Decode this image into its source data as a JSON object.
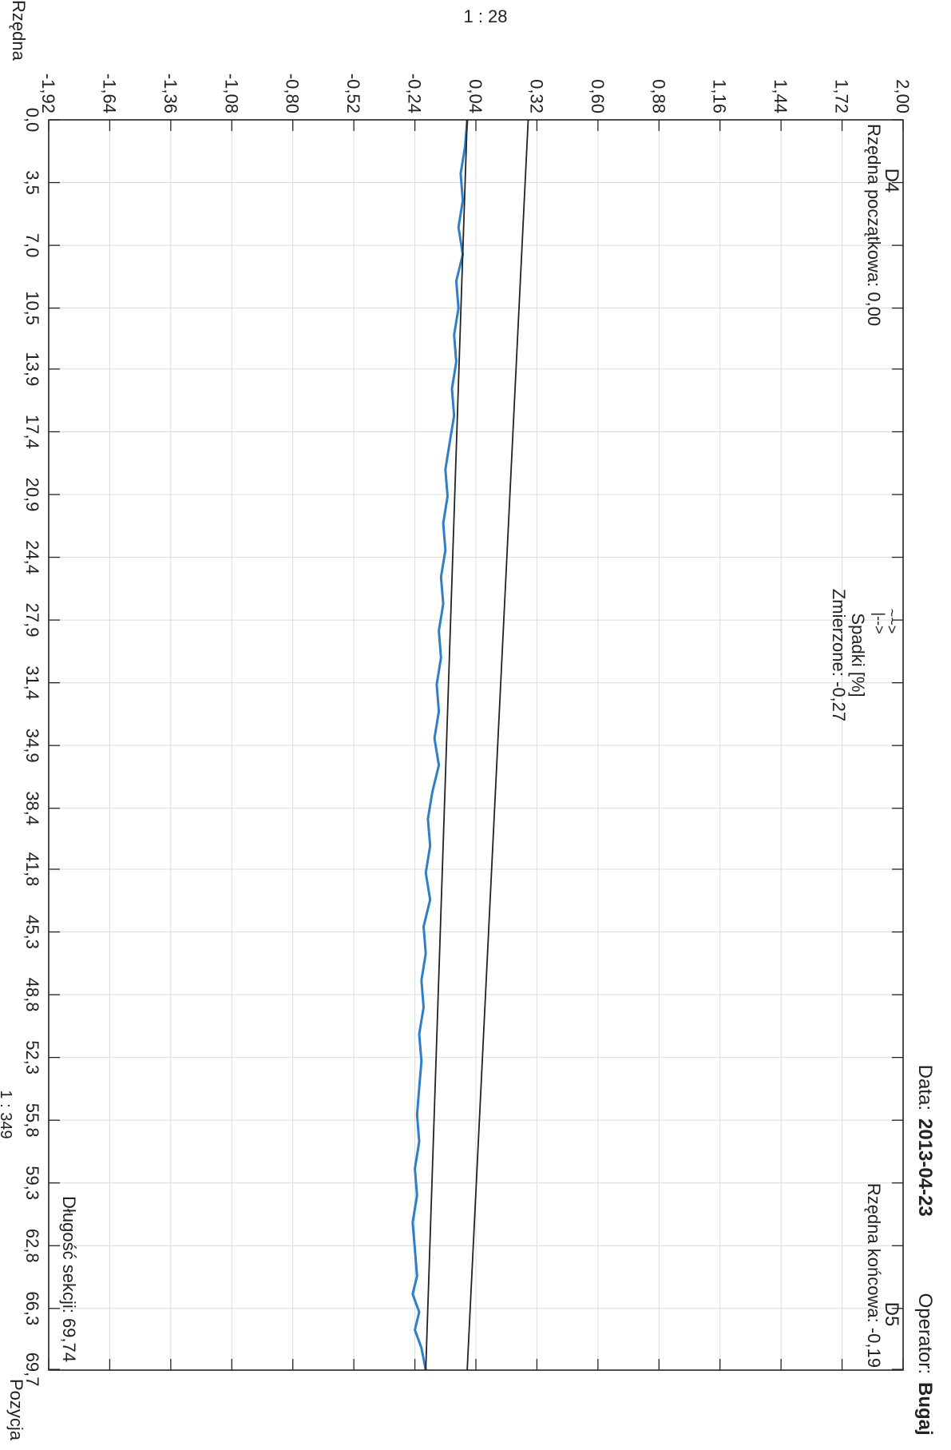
{
  "header": {
    "scale_top": "1 : 28",
    "date_label": "Data:",
    "date_value": "2013-04-23",
    "operator_label": "Operator:",
    "operator_value": "Bugaj"
  },
  "chart_data": {
    "type": "line",
    "ylabel": "Rzędna",
    "xlabel": "Pozycja",
    "scale_bottom": "1 : 349",
    "ylim": [
      -1.92,
      2.0
    ],
    "xlim": [
      0.0,
      69.74
    ],
    "y_ticks": [
      "2,00",
      "1,72",
      "1,44",
      "1,16",
      "0,88",
      "0,60",
      "0,32",
      "0,04",
      "-0,24",
      "-0,52",
      "-0,80",
      "-1,08",
      "-1,36",
      "-1,64",
      "-1,92"
    ],
    "y_tick_values": [
      2.0,
      1.72,
      1.44,
      1.16,
      0.88,
      0.6,
      0.32,
      0.04,
      -0.24,
      -0.52,
      -0.8,
      -1.08,
      -1.36,
      -1.64,
      -1.92
    ],
    "x_ticks": [
      "0,0",
      "3,5",
      "7,0",
      "10,5",
      "13,9",
      "17,4",
      "20,9",
      "24,4",
      "27,9",
      "31,4",
      "34,9",
      "38,4",
      "41,8",
      "45,3",
      "48,8",
      "52,3",
      "55,8",
      "59,3",
      "62,8",
      "66,3",
      "69,7"
    ],
    "x_tick_values": [
      0.0,
      3.5,
      7.0,
      10.5,
      13.9,
      17.4,
      20.9,
      24.4,
      27.9,
      31.4,
      34.9,
      38.4,
      41.8,
      45.3,
      48.8,
      52.3,
      55.8,
      59.3,
      62.8,
      66.3,
      69.7
    ],
    "grid": true,
    "annotations": {
      "start_station": "D4",
      "start_elevation": "Rzędna początkowa: 0,00",
      "end_station": "D5",
      "end_elevation": "Rzędna końcowa: -0,19",
      "slope_arrows": "~~>\n|-->",
      "slope_title": "Spadki [%]",
      "slope_measured": "Zmierzone: -0,27",
      "section_length": "Długość sekcji: 69,74"
    },
    "series": [
      {
        "color": "#2f7fc8",
        "x": [
          0.0,
          1.5,
          3.0,
          4.5,
          6.0,
          7.5,
          9.0,
          10.5,
          12.0,
          13.5,
          15.0,
          16.5,
          18.0,
          19.5,
          21.0,
          22.5,
          24.0,
          25.5,
          27.0,
          28.5,
          30.0,
          31.5,
          33.0,
          34.5,
          36.0,
          37.5,
          39.0,
          40.5,
          42.0,
          43.5,
          45.0,
          46.5,
          48.0,
          49.5,
          51.0,
          52.5,
          54.0,
          55.5,
          57.0,
          58.5,
          60.0,
          61.5,
          63.0,
          64.5,
          65.5,
          66.5,
          67.5,
          68.5,
          69.74
        ],
        "y": [
          0.0,
          -0.01,
          -0.03,
          -0.02,
          -0.04,
          -0.02,
          -0.05,
          -0.04,
          -0.06,
          -0.05,
          -0.07,
          -0.06,
          -0.08,
          -0.1,
          -0.09,
          -0.11,
          -0.1,
          -0.12,
          -0.11,
          -0.13,
          -0.12,
          -0.14,
          -0.13,
          -0.15,
          -0.13,
          -0.16,
          -0.18,
          -0.17,
          -0.19,
          -0.17,
          -0.2,
          -0.19,
          -0.21,
          -0.2,
          -0.22,
          -0.21,
          -0.22,
          -0.23,
          -0.22,
          -0.24,
          -0.23,
          -0.25,
          -0.24,
          -0.23,
          -0.25,
          -0.22,
          -0.24,
          -0.21,
          -0.19
        ]
      },
      {
        "color": "#222222",
        "x": [
          0.0,
          69.74
        ],
        "y": [
          0.0,
          -0.19
        ]
      },
      {
        "color": "#222222",
        "x": [
          0.0,
          69.74
        ],
        "y": [
          0.28,
          0.0
        ]
      }
    ]
  }
}
